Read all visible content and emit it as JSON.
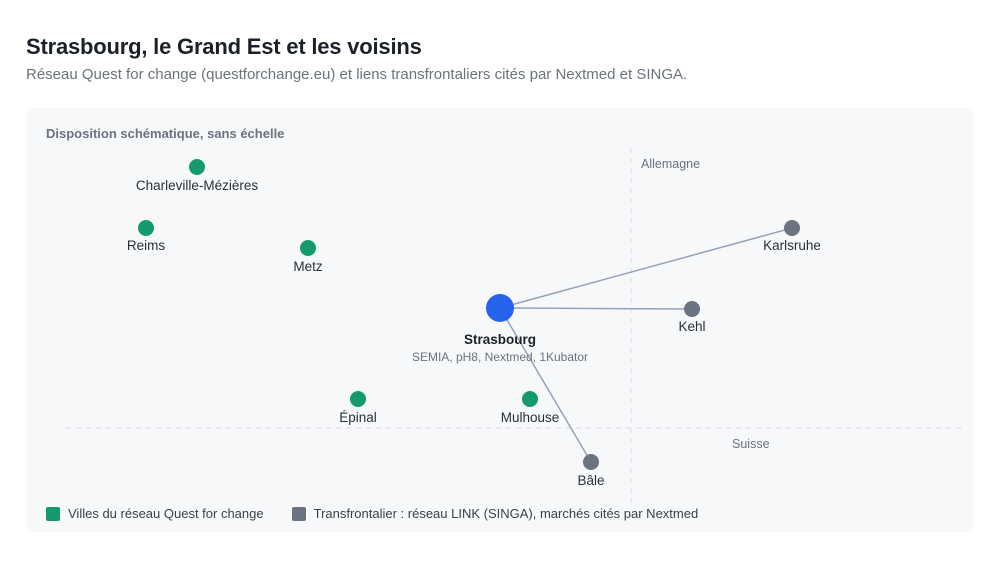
{
  "header": {
    "title": "Strasbourg, le Grand Est et les voisins",
    "subtitle": "Réseau Quest for change (questforchange.eu) et liens transfrontaliers cités par Nextmed et SINGA."
  },
  "panel": {
    "label": "Disposition schématique, sans échelle"
  },
  "regions": {
    "germany": "Allemagne",
    "switzerland": "Suisse"
  },
  "colors": {
    "network": "#159a6c",
    "crossborder": "#6b7280",
    "hub": "#2563eb",
    "link": "#94a3b8"
  },
  "hub": {
    "name": "Strasbourg",
    "detail": "SEMIA, pH8, Nextmed, 1Kubator"
  },
  "network_cities": [
    "Charleville-Mézières",
    "Reims",
    "Metz",
    "Épinal",
    "Mulhouse"
  ],
  "crossborder_cities": [
    "Karlsruhe",
    "Kehl",
    "Bâle"
  ],
  "legend": {
    "network": "Villes du réseau Quest for change",
    "crossborder": "Transfrontalier : réseau LINK (SINGA), marchés cités par Nextmed"
  }
}
